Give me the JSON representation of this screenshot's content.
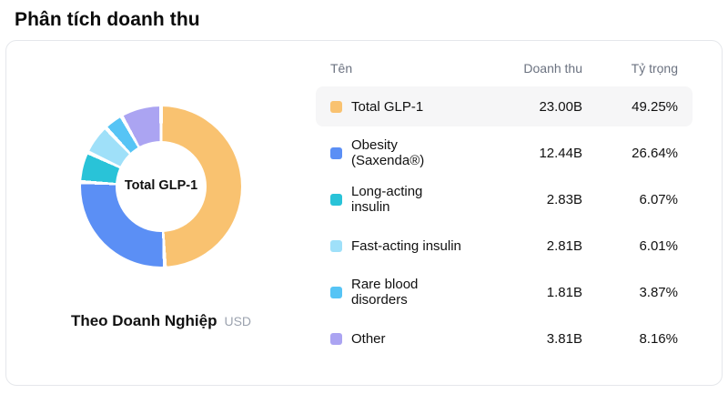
{
  "page_title": "Phân tích doanh thu",
  "chart_data": {
    "type": "pie",
    "subtype": "donut",
    "title": "Theo Doanh Nghiệp",
    "unit": "USD",
    "center_label": "Total GLP-1",
    "legend_position": "right-table",
    "categories": [
      "Total GLP-1",
      "Obesity (Saxenda®)",
      "Long-acting insulin",
      "Fast-acting insulin",
      "Rare blood disorders",
      "Other"
    ],
    "values_billions": [
      23.0,
      12.44,
      2.83,
      2.81,
      1.81,
      3.81
    ],
    "value_labels": [
      "23.00B",
      "12.44B",
      "2.83B",
      "2.81B",
      "1.81B",
      "3.81B"
    ],
    "percents": [
      49.25,
      26.64,
      6.07,
      6.01,
      3.87,
      8.16
    ],
    "percent_labels": [
      "49.25%",
      "26.64%",
      "6.07%",
      "6.01%",
      "3.87%",
      "8.16%"
    ],
    "colors": [
      "#F9C270",
      "#5B8FF5",
      "#29C3D8",
      "#9FE0F9",
      "#56C4F5",
      "#ABA4F2"
    ]
  },
  "table": {
    "headers": {
      "name": "Tên",
      "revenue": "Doanh thu",
      "share": "Tỷ trọng"
    },
    "rows": [
      {
        "name": "Total GLP-1",
        "revenue": "23.00B",
        "share": "49.25%"
      },
      {
        "name": "Obesity (Saxenda®)",
        "revenue": "12.44B",
        "share": "26.64%"
      },
      {
        "name": "Long-acting insulin",
        "revenue": "2.83B",
        "share": "6.07%"
      },
      {
        "name": "Fast-acting insulin",
        "revenue": "2.81B",
        "share": "6.01%"
      },
      {
        "name": "Rare blood disorders",
        "revenue": "1.81B",
        "share": "3.87%"
      },
      {
        "name": "Other",
        "revenue": "3.81B",
        "share": "8.16%"
      }
    ]
  },
  "footer": {
    "label": "Theo Doanh Nghiệp",
    "unit": "USD"
  }
}
